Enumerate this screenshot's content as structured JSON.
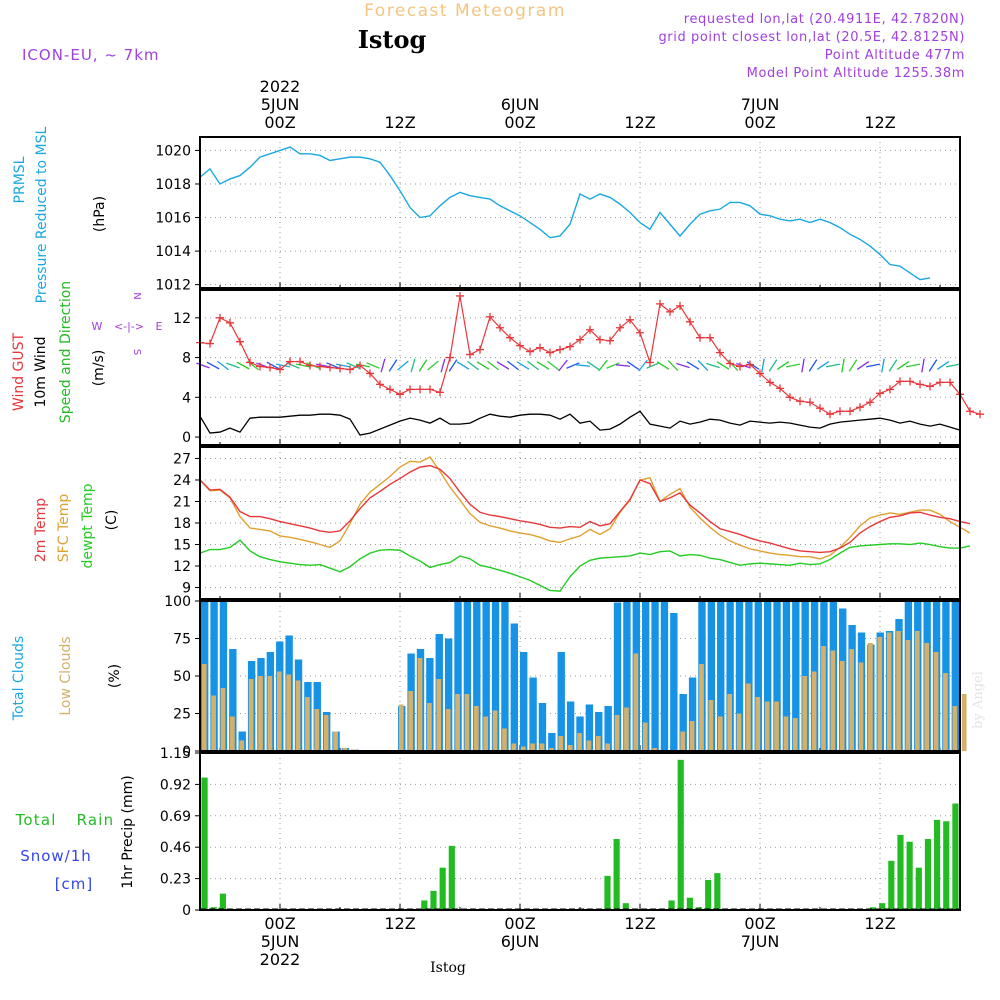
{
  "header": {
    "title": "Forecast Meteogram",
    "location": "Istog",
    "model": "ICON-EU, ~ 7km",
    "requested": "requested lon,lat (20.4911E, 42.7820N)",
    "grid_point": "grid point closest lon,lat (20.5E, 42.8125N)",
    "point_altitude": "Point Altitude 477m",
    "model_altitude": "Model Point Altitude 1255.38m",
    "footer_location": "Istog",
    "watermark": "by Angel"
  },
  "colors": {
    "pressure": "#1ba8e0",
    "gust": "#e8373a",
    "wind_speed": "#000000",
    "wind_dir_label": "#22bb22",
    "temp": "#e8373a",
    "sfc": "#e0a030",
    "dew": "#22cc22",
    "total_clouds": "#1793e6",
    "low_clouds": "#d4b06a",
    "rain": "#22bb22",
    "snow_label": "#3344ee",
    "title": "#f4c580",
    "purple": "#a040e0"
  },
  "time_axis": {
    "top_year": "2022",
    "top_labels": [
      {
        "hour": 8,
        "lines": [
          "5JUN",
          "00Z"
        ]
      },
      {
        "hour": 20,
        "lines": [
          "12Z"
        ]
      },
      {
        "hour": 32,
        "lines": [
          "6JUN",
          "00Z"
        ]
      },
      {
        "hour": 44,
        "lines": [
          "12Z"
        ]
      },
      {
        "hour": 56,
        "lines": [
          "7JUN",
          "00Z"
        ]
      },
      {
        "hour": 68,
        "lines": [
          "12Z"
        ]
      }
    ],
    "bottom_labels": [
      {
        "hour": 8,
        "lines": [
          "00Z",
          "5JUN",
          "2022"
        ]
      },
      {
        "hour": 20,
        "lines": [
          "12Z"
        ]
      },
      {
        "hour": 32,
        "lines": [
          "00Z",
          "6JUN"
        ]
      },
      {
        "hour": 44,
        "lines": [
          "12Z"
        ]
      },
      {
        "hour": 56,
        "lines": [
          "00Z",
          "7JUN"
        ]
      },
      {
        "hour": 68,
        "lines": [
          "12Z"
        ]
      }
    ]
  },
  "chart_data": [
    {
      "type": "line",
      "panel": "pressure",
      "title": "Pressure Reduced to MSL",
      "ylabel_lines": [
        "PRMSL",
        "Pressure Reduced to MSL"
      ],
      "unit": "(hPa)",
      "ylim": [
        1011.8,
        1020.8
      ],
      "ticks": [
        "1020",
        "1018",
        "1016",
        "1014",
        "1012"
      ],
      "series": [
        {
          "name": "PRMSL",
          "values": [
            1018.4,
            1018.9,
            1018.0,
            1018.3,
            1018.5,
            1019.0,
            1019.6,
            1019.8,
            1020.0,
            1020.2,
            1019.8,
            1019.8,
            1019.7,
            1019.4,
            1019.5,
            1019.6,
            1019.6,
            1019.5,
            1019.3,
            1018.5,
            1017.6,
            1016.6,
            1016.0,
            1016.1,
            1016.7,
            1017.2,
            1017.5,
            1017.3,
            1017.2,
            1017.1,
            1016.7,
            1016.4,
            1016.1,
            1015.7,
            1015.3,
            1014.8,
            1014.9,
            1015.6,
            1017.4,
            1017.1,
            1017.4,
            1017.2,
            1016.8,
            1016.3,
            1015.7,
            1015.3,
            1016.3,
            1015.6,
            1014.9,
            1015.6,
            1016.2,
            1016.4,
            1016.5,
            1016.9,
            1016.9,
            1016.7,
            1016.2,
            1016.1,
            1015.9,
            1015.8,
            1015.9,
            1015.7,
            1015.9,
            1015.7,
            1015.4,
            1015.0,
            1014.7,
            1014.3,
            1013.8,
            1013.2,
            1013.1,
            1012.7,
            1012.3,
            1012.4
          ]
        }
      ]
    },
    {
      "type": "line",
      "panel": "wind",
      "title": "Wind GUST / 10m Wind Speed and Direction",
      "ylabel_lines": [
        "Wind GUST",
        "10m Wind",
        "Speed and Direction"
      ],
      "unit": "(m/s)",
      "compass": [
        "N",
        "W",
        "<-|->",
        "E",
        "S"
      ],
      "ylim": [
        -0.8,
        14.8
      ],
      "ticks": [
        "12",
        "8",
        "4",
        "0"
      ],
      "series": [
        {
          "name": "Wind GUST",
          "values": [
            9.5,
            9.4,
            12.0,
            11.5,
            9.6,
            7.5,
            7.1,
            7.0,
            6.8,
            7.6,
            7.6,
            7.2,
            7.1,
            7.0,
            6.9,
            6.8,
            7.2,
            6.4,
            5.3,
            4.8,
            4.3,
            4.8,
            4.8,
            4.8,
            4.5,
            8.0,
            14.2,
            8.3,
            8.8,
            12.1,
            11.0,
            10.0,
            9.2,
            8.6,
            9.0,
            8.5,
            8.8,
            9.1,
            9.8,
            10.8,
            9.8,
            9.7,
            11.0,
            11.8,
            10.5,
            7.5,
            13.4,
            12.6,
            13.2,
            11.6,
            10.0,
            10.0,
            8.5,
            7.4,
            7.1,
            7.3,
            6.4,
            5.5,
            4.9,
            4.0,
            3.6,
            3.5,
            2.9,
            2.3,
            2.6,
            2.6,
            3.0,
            3.5,
            4.4,
            4.8,
            5.6,
            5.6,
            5.3,
            5.1,
            5.5,
            5.5,
            4.3,
            2.6,
            2.3
          ]
        },
        {
          "name": "10m Wind Speed",
          "values": [
            2.1,
            0.4,
            0.5,
            0.9,
            0.5,
            1.9,
            2.0,
            2.0,
            2.0,
            2.1,
            2.2,
            2.2,
            2.3,
            2.3,
            2.2,
            1.8,
            0.2,
            0.4,
            0.8,
            1.2,
            1.6,
            1.9,
            1.7,
            1.4,
            1.9,
            1.3,
            1.3,
            1.4,
            1.9,
            2.3,
            2.1,
            2.0,
            2.2,
            2.3,
            2.3,
            2.2,
            1.8,
            2.3,
            1.4,
            1.6,
            0.7,
            0.8,
            1.3,
            2.0,
            2.6,
            1.3,
            1.1,
            0.9,
            1.6,
            1.3,
            1.5,
            1.8,
            1.7,
            1.4,
            1.2,
            1.6,
            1.5,
            1.4,
            1.5,
            1.4,
            1.2,
            1.0,
            0.9,
            1.3,
            1.5,
            1.6,
            1.7,
            1.8,
            1.9,
            1.7,
            1.4,
            1.6,
            1.3,
            1.1,
            1.3,
            1.0,
            0.7
          ]
        },
        {
          "name": "Wind Direction Arrows",
          "values": []
        }
      ]
    },
    {
      "type": "line",
      "panel": "temperature",
      "title": "2m Temp / SFC Temp / dewpt Temp",
      "ylabel_lines": [
        "2m Temp",
        "SFC Temp",
        "dewpt Temp"
      ],
      "unit": "(C)",
      "ylim": [
        7.4,
        28.6
      ],
      "ticks": [
        "27",
        "24",
        "21",
        "18",
        "15",
        "12",
        "9"
      ],
      "series": [
        {
          "name": "2m Temp",
          "values": [
            24.0,
            22.6,
            22.7,
            21.6,
            19.6,
            18.9,
            18.9,
            18.6,
            18.2,
            17.9,
            17.6,
            17.3,
            16.9,
            16.7,
            16.9,
            18.3,
            20.0,
            21.5,
            22.4,
            23.4,
            24.2,
            25.1,
            25.8,
            26.0,
            25.5,
            24.2,
            22.3,
            20.6,
            19.5,
            19.1,
            18.9,
            18.6,
            18.3,
            18.1,
            17.8,
            17.4,
            17.3,
            17.5,
            17.4,
            18.2,
            17.6,
            17.9,
            19.6,
            21.3,
            24.0,
            23.5,
            21.0,
            21.5,
            22.2,
            20.5,
            19.4,
            18.2,
            17.2,
            16.8,
            16.4,
            15.9,
            15.5,
            15.2,
            14.8,
            14.4,
            14.1,
            14.0,
            13.9,
            14.0,
            14.5,
            15.3,
            16.6,
            17.5,
            18.2,
            18.8,
            19.0,
            19.4,
            19.5,
            19.1,
            18.8,
            18.6,
            18.2,
            17.9
          ]
        },
        {
          "name": "SFC Temp",
          "values": [
            24.0,
            22.5,
            22.6,
            21.5,
            18.9,
            17.3,
            17.1,
            16.9,
            16.2,
            16.0,
            15.7,
            15.4,
            15.0,
            14.6,
            15.5,
            17.9,
            20.6,
            22.3,
            23.4,
            24.5,
            25.8,
            26.6,
            26.5,
            27.2,
            25.2,
            23.0,
            21.2,
            19.3,
            18.1,
            17.6,
            17.3,
            16.9,
            16.6,
            16.4,
            16.0,
            15.5,
            15.3,
            15.8,
            16.2,
            17.1,
            16.4,
            17.2,
            19.5,
            21.2,
            24.0,
            24.3,
            21.0,
            22.0,
            22.8,
            20.2,
            18.7,
            17.4,
            16.3,
            15.5,
            14.9,
            14.4,
            14.1,
            13.8,
            13.6,
            13.5,
            13.3,
            13.3,
            13.0,
            13.5,
            14.6,
            16.0,
            17.6,
            18.7,
            19.1,
            19.4,
            19.2,
            19.5,
            19.8,
            19.8,
            19.2,
            18.2,
            17.4,
            16.6
          ]
        },
        {
          "name": "dewpt Temp",
          "values": [
            13.8,
            14.3,
            14.3,
            14.6,
            15.6,
            14.1,
            13.3,
            12.9,
            12.6,
            12.4,
            12.2,
            12.1,
            12.2,
            11.7,
            11.2,
            11.9,
            13.0,
            13.8,
            14.2,
            14.3,
            14.2,
            13.4,
            12.7,
            11.8,
            12.2,
            12.5,
            13.4,
            13.0,
            12.1,
            11.8,
            11.4,
            11.0,
            10.5,
            10.0,
            9.3,
            8.6,
            8.5,
            10.5,
            12.0,
            12.8,
            13.1,
            13.2,
            13.3,
            13.4,
            13.8,
            13.6,
            14.0,
            14.1,
            13.4,
            13.6,
            13.5,
            13.1,
            12.9,
            12.5,
            12.1,
            12.3,
            12.4,
            12.3,
            12.2,
            12.1,
            12.4,
            12.2,
            12.3,
            12.9,
            13.8,
            14.6,
            14.8,
            14.9,
            15.0,
            15.1,
            15.1,
            15.0,
            15.2,
            15.0,
            14.7,
            14.5,
            14.5,
            14.8
          ]
        }
      ]
    },
    {
      "type": "bar",
      "panel": "clouds",
      "title": "Total Clouds / Low Clouds",
      "ylabel_lines": [
        "Total Clouds",
        "Low Clouds"
      ],
      "unit": "(%)",
      "ylim": [
        0,
        100
      ],
      "ticks": [
        "100",
        "75",
        "50",
        "25",
        "0"
      ],
      "series": [
        {
          "name": "Total Clouds",
          "values": [
            100,
            100,
            100,
            68,
            13,
            60,
            62,
            66,
            73,
            77,
            61,
            46,
            46,
            26,
            13,
            2,
            1,
            0,
            0,
            0,
            0,
            30,
            65,
            68,
            62,
            78,
            75,
            100,
            100,
            100,
            100,
            100,
            100,
            85,
            66,
            49,
            32,
            12,
            66,
            33,
            23,
            31,
            26,
            30,
            99,
            100,
            100,
            100,
            100,
            100,
            92,
            38,
            49,
            100,
            100,
            100,
            100,
            100,
            100,
            100,
            100,
            100,
            100,
            100,
            100,
            100,
            100,
            100,
            95,
            84,
            79,
            71,
            79,
            80,
            88,
            100,
            100,
            100,
            100,
            100,
            100
          ]
        },
        {
          "name": "Low Clouds",
          "values": [
            58,
            37,
            42,
            23,
            7,
            48,
            50,
            50,
            53,
            51,
            47,
            36,
            28,
            24,
            13,
            2,
            1,
            0,
            0,
            0,
            0,
            31,
            40,
            62,
            32,
            48,
            28,
            38,
            38,
            30,
            23,
            27,
            15,
            5,
            3,
            5,
            5,
            2,
            10,
            4,
            12,
            7,
            10,
            5,
            24,
            29,
            65,
            19,
            2,
            0,
            0,
            13,
            20,
            58,
            34,
            23,
            38,
            25,
            45,
            36,
            33,
            33,
            23,
            22,
            50,
            53,
            70,
            67,
            60,
            68,
            59,
            72,
            76,
            79,
            80,
            74,
            80,
            72,
            66,
            52,
            30,
            38
          ]
        }
      ]
    },
    {
      "type": "bar",
      "panel": "precip",
      "title": "1hr Precip",
      "ylabel_lines": [
        "Total Rain",
        "Snow/1h",
        "[cm]"
      ],
      "unit": "1hr Precip (mm)",
      "ylim": [
        0,
        1.15
      ],
      "ticks": [
        "1.15",
        "0.92",
        "0.69",
        "0.46",
        "0.23",
        "0"
      ],
      "series": [
        {
          "name": "Total Rain",
          "values": [
            0.97,
            0.02,
            0.12,
            0,
            0,
            0,
            0,
            0,
            0,
            0,
            0,
            0,
            0,
            0,
            0,
            0,
            0,
            0,
            0,
            0,
            0,
            0,
            0,
            0,
            0.07,
            0.14,
            0.31,
            0.47,
            0,
            0,
            0,
            0,
            0,
            0,
            0,
            0,
            0,
            0,
            0,
            0,
            0,
            0,
            0,
            0,
            0.25,
            0.52,
            0.05,
            0,
            0,
            0,
            0,
            0.07,
            1.1,
            0.09,
            0.02,
            0.22,
            0.27,
            0,
            0,
            0,
            0,
            0,
            0,
            0,
            0,
            0,
            0,
            0,
            0,
            0,
            0,
            0,
            0,
            0.02,
            0.05,
            0.36,
            0.55,
            0.5,
            0.31,
            0.52,
            0.66,
            0.65,
            0.78
          ]
        },
        {
          "name": "Snow/1h",
          "values": []
        }
      ]
    }
  ]
}
